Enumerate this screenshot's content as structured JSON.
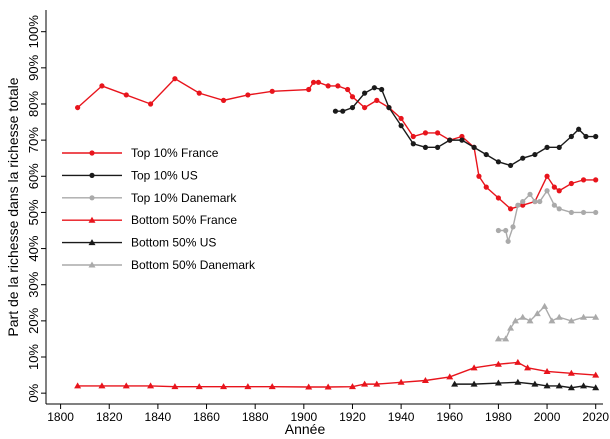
{
  "chart_data": {
    "type": "line",
    "xlabel": "Année",
    "ylabel": "Part de la richesse dans la richesse totale",
    "xlim": [
      1794,
      2023
    ],
    "xticks": [
      1800,
      1820,
      1840,
      1860,
      1880,
      1900,
      1920,
      1940,
      1960,
      1980,
      2000,
      2020
    ],
    "ylim": [
      -3,
      106
    ],
    "yticks": [
      {
        "value": 0,
        "label": "0%"
      },
      {
        "value": 10,
        "label": "10%"
      },
      {
        "value": 20,
        "label": "20%"
      },
      {
        "value": 30,
        "label": "30%"
      },
      {
        "value": 40,
        "label": "40%"
      },
      {
        "value": 50,
        "label": "50%"
      },
      {
        "value": 60,
        "label": "60%"
      },
      {
        "value": 70,
        "label": "70%"
      },
      {
        "value": 80,
        "label": "80%"
      },
      {
        "value": 90,
        "label": "90%"
      },
      {
        "value": 100,
        "label": "100%"
      }
    ],
    "legend": "left",
    "series": [
      {
        "name": "Top 10% France",
        "color": "#e8141c",
        "marker": "circle",
        "x": [
          1807,
          1817,
          1827,
          1837,
          1847,
          1857,
          1867,
          1877,
          1887,
          1902,
          1904,
          1906,
          1910,
          1914,
          1918,
          1920,
          1925,
          1930,
          1935,
          1940,
          1945,
          1950,
          1955,
          1960,
          1965,
          1970,
          1972,
          1975,
          1980,
          1985,
          1990,
          1995,
          2000,
          2003,
          2005,
          2010,
          2015,
          2020
        ],
        "values": [
          79,
          85,
          82.5,
          80,
          87,
          83,
          81,
          82.5,
          83.5,
          84,
          86,
          86,
          85,
          85,
          84,
          82,
          79,
          81,
          79,
          76,
          71,
          72,
          72,
          70,
          71,
          68,
          60,
          57,
          54,
          51,
          52,
          53,
          60,
          57,
          56,
          58,
          59,
          59
        ]
      },
      {
        "name": "Top 10% US",
        "color": "#1a1a1a",
        "marker": "circle",
        "x": [
          1913,
          1916,
          1920,
          1925,
          1929,
          1932,
          1935,
          1940,
          1945,
          1950,
          1955,
          1960,
          1965,
          1970,
          1975,
          1980,
          1985,
          1990,
          1995,
          2000,
          2005,
          2010,
          2013,
          2016,
          2020
        ],
        "values": [
          78,
          78,
          79,
          83,
          84.5,
          84,
          79,
          74,
          69,
          68,
          68,
          70,
          70,
          68,
          66,
          64,
          63,
          65,
          66,
          68,
          68,
          71,
          73,
          71,
          71
        ]
      },
      {
        "name": "Top 10% Danemark",
        "color": "#aaaaaa",
        "marker": "circle",
        "x": [
          1980,
          1983,
          1984,
          1986,
          1988,
          1990,
          1993,
          1995,
          1997,
          2000,
          2003,
          2005,
          2010,
          2015,
          2020
        ],
        "values": [
          45,
          45,
          42,
          46,
          52,
          53,
          55,
          53,
          53,
          56,
          52,
          51,
          50,
          50,
          50
        ]
      },
      {
        "name": "Bottom 50% France",
        "color": "#e8141c",
        "marker": "triangle",
        "x": [
          1807,
          1817,
          1827,
          1837,
          1847,
          1857,
          1867,
          1877,
          1887,
          1902,
          1910,
          1920,
          1925,
          1930,
          1940,
          1950,
          1960,
          1970,
          1980,
          1988,
          1992,
          2000,
          2010,
          2020
        ],
        "values": [
          2,
          2,
          2,
          2,
          1.8,
          1.8,
          1.8,
          1.8,
          1.8,
          1.7,
          1.7,
          1.8,
          2.5,
          2.5,
          3,
          3.5,
          4.5,
          7,
          8,
          8.5,
          7,
          6,
          5.5,
          5
        ]
      },
      {
        "name": "Bottom 50% US",
        "color": "#1a1a1a",
        "marker": "triangle",
        "x": [
          1962,
          1970,
          1980,
          1988,
          1995,
          2000,
          2005,
          2010,
          2015,
          2020
        ],
        "values": [
          2.5,
          2.5,
          2.8,
          3,
          2.5,
          2,
          2,
          1.5,
          2,
          1.5
        ]
      },
      {
        "name": "Bottom 50% Danemark",
        "color": "#aaaaaa",
        "marker": "triangle",
        "x": [
          1980,
          1983,
          1985,
          1987,
          1990,
          1993,
          1996,
          1999,
          2002,
          2005,
          2010,
          2015,
          2020
        ],
        "values": [
          15,
          15,
          18,
          20,
          21,
          20,
          22,
          24,
          20,
          21,
          20,
          21,
          21
        ]
      }
    ]
  }
}
